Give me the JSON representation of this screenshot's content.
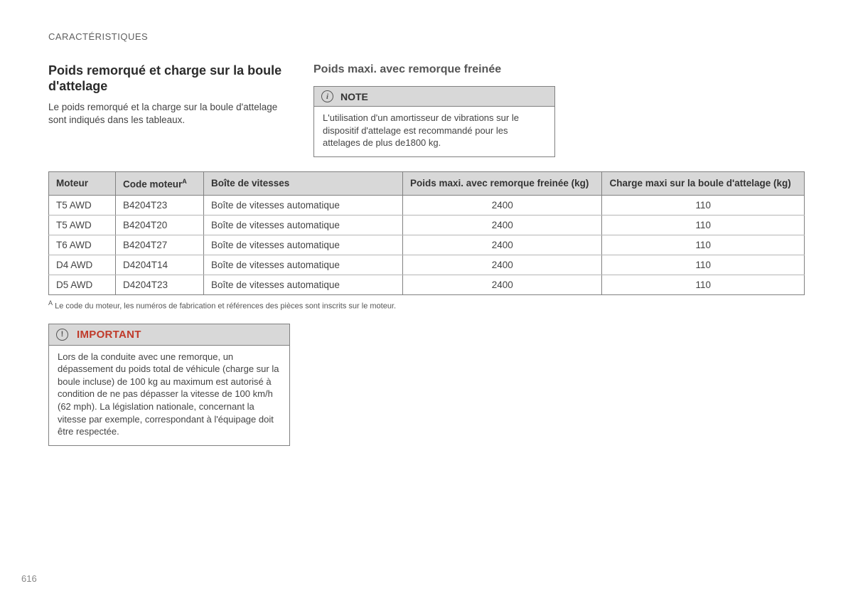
{
  "section_label": "CARACTÉRISTIQUES",
  "title": "Poids remorqué et charge sur la boule d'attelage",
  "intro": "Le poids remorqué et la charge sur la boule d'attelage sont indiqués dans les tableaux.",
  "subhead": "Poids maxi. avec remorque freinée",
  "note": {
    "label": "NOTE",
    "body": "L'utilisation d'un amortisseur de vibrations sur le dispositif d'attelage est recommandé pour les attelages de plus de1800 kg."
  },
  "table": {
    "columns": [
      "Moteur",
      "Code moteur",
      "Boîte de vitesses",
      "Poids maxi. avec remorque freinée (kg)",
      "Charge maxi sur la boule d'attelage (kg)"
    ],
    "code_sup": "A",
    "col_widths": [
      "94px",
      "124px",
      "280px",
      "auto",
      "auto"
    ],
    "align": [
      "left",
      "left",
      "left",
      "center",
      "center"
    ],
    "rows": [
      [
        "T5 AWD",
        "B4204T23",
        "Boîte de vitesses automatique",
        "2400",
        "110"
      ],
      [
        "T5 AWD",
        "B4204T20",
        "Boîte de vitesses automatique",
        "2400",
        "110"
      ],
      [
        "T6 AWD",
        "B4204T27",
        "Boîte de vitesses automatique",
        "2400",
        "110"
      ],
      [
        "D4 AWD",
        "D4204T14",
        "Boîte de vitesses automatique",
        "2400",
        "110"
      ],
      [
        "D5 AWD",
        "D4204T23",
        "Boîte de vitesses automatique",
        "2400",
        "110"
      ]
    ],
    "header_bg": "#d8d8d8",
    "border_color": "#808080",
    "row_border_color": "#b5b5b5"
  },
  "footnote": {
    "marker": "A",
    "text": "Le code du moteur, les numéros de fabrication et références des pièces sont inscrits sur le moteur."
  },
  "important": {
    "label": "IMPORTANT",
    "label_color": "#c03a2a",
    "body": "Lors de la conduite avec une remorque, un dépassement du poids total de véhicule (charge sur la boule incluse) de 100 kg au maximum est autorisé à condition de ne pas dépasser la vitesse de 100 km/h (62 mph). La législation nationale, concernant la vitesse par exemple, correspondant à l'équipage doit être respectée."
  },
  "page_number": "616"
}
